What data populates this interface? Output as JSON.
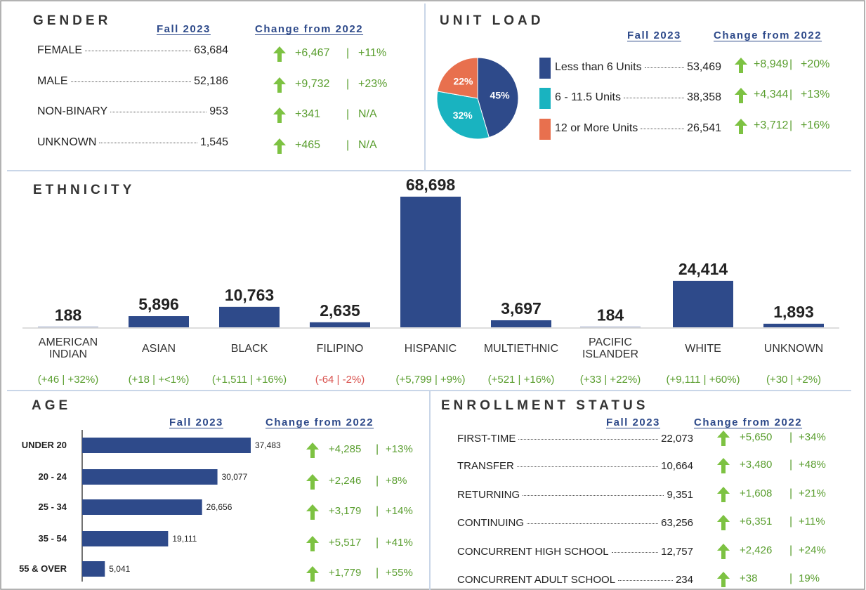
{
  "gender": {
    "title": "GENDER",
    "headers": [
      "Fall 2023",
      "Change from 2022"
    ],
    "rows": [
      {
        "label": "FEMALE",
        "value": "63,684",
        "change": "+6,467",
        "pct": "+11%"
      },
      {
        "label": "MALE",
        "value": "52,186",
        "change": "+9,732",
        "pct": "+23%"
      },
      {
        "label": "NON-BINARY",
        "value": "953",
        "change": "+341",
        "pct": "N/A"
      },
      {
        "label": "UNKNOWN",
        "value": "1,545",
        "change": "+465",
        "pct": "N/A"
      }
    ]
  },
  "unit_load": {
    "title": "UNIT LOAD",
    "headers": [
      "Fall 2023",
      "Change from 2022"
    ],
    "chart_data": {
      "type": "pie",
      "values": [
        45,
        32,
        22
      ],
      "value_labels": [
        "45%",
        "32%",
        "22%"
      ],
      "colors": [
        "#2e4a8a",
        "#19b3c0",
        "#e8704e"
      ]
    },
    "rows": [
      {
        "label": "Less than 6 Units",
        "value": "53,469",
        "change": "+8,949",
        "pct": "+20%"
      },
      {
        "label": "6 - 11.5 Units",
        "value": "38,358",
        "change": "+4,344",
        "pct": "+13%"
      },
      {
        "label": "12 or More Units",
        "value": "26,541",
        "change": "+3,712",
        "pct": "+16%"
      }
    ]
  },
  "ethnicity": {
    "title": "ETHNICITY",
    "chart_data": {
      "type": "bar",
      "color": "#2e4a8a",
      "categories": [
        "AMERICAN INDIAN",
        "ASIAN",
        "BLACK",
        "FILIPINO",
        "HISPANIC",
        "MULTIETHNIC",
        "PACIFIC ISLANDER",
        "WHITE",
        "UNKNOWN"
      ],
      "values": [
        188,
        5896,
        10763,
        2635,
        68698,
        3697,
        184,
        24414,
        1893
      ],
      "value_labels": [
        "188",
        "5,896",
        "10,763",
        "2,635",
        "68,698",
        "3,697",
        "184",
        "24,414",
        "1,893"
      ]
    },
    "changes": [
      "(+46 | +32%)",
      "(+18 | +<1%)",
      "(+1,511 | +16%)",
      "(-64 | -2%)",
      "(+5,799 | +9%)",
      "(+521 | +16%)",
      "(+33 | +22%)",
      "(+9,111 | +60%)",
      "(+30 | +2%)"
    ]
  },
  "age": {
    "title": "AGE",
    "headers": [
      "Fall 2023",
      "Change from 2022"
    ],
    "chart_data": {
      "type": "barh",
      "color": "#2e4a8a",
      "categories": [
        "UNDER 20",
        "20 - 24",
        "25 - 34",
        "35 - 54",
        "55 & OVER"
      ],
      "values": [
        37483,
        30077,
        26656,
        19111,
        5041
      ],
      "value_labels": [
        "37,483",
        "30,077",
        "26,656",
        "19,111",
        "5,041"
      ]
    },
    "rows": [
      {
        "change": "+4,285",
        "pct": "+13%"
      },
      {
        "change": "+2,246",
        "pct": "+8%"
      },
      {
        "change": "+3,179",
        "pct": "+14%"
      },
      {
        "change": "+5,517",
        "pct": "+41%"
      },
      {
        "change": "+1,779",
        "pct": "+55%"
      }
    ]
  },
  "enrollment": {
    "title": "ENROLLMENT STATUS",
    "headers": [
      "Fall 2023",
      "Change from 2022"
    ],
    "rows": [
      {
        "label": "FIRST-TIME",
        "value": "22,073",
        "change": "+5,650",
        "pct": "+34%"
      },
      {
        "label": "TRANSFER",
        "value": "10,664",
        "change": "+3,480",
        "pct": "+48%"
      },
      {
        "label": "RETURNING",
        "value": "9,351",
        "change": "+1,608",
        "pct": "+21%"
      },
      {
        "label": "CONTINUING",
        "value": "63,256",
        "change": "+6,351",
        "pct": "+11%"
      },
      {
        "label": "CONCURRENT HIGH SCHOOL",
        "value": "12,757",
        "change": "+2,426",
        "pct": "+24%"
      },
      {
        "label": "CONCURRENT ADULT SCHOOL",
        "value": "234",
        "change": "+38",
        "pct": "19%"
      }
    ]
  }
}
